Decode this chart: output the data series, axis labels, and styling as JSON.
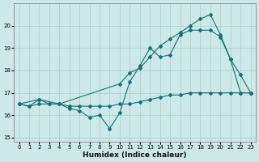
{
  "xlabel": "Humidex (Indice chaleur)",
  "xlim": [
    -0.5,
    23.5
  ],
  "ylim": [
    14.8,
    21.0
  ],
  "yticks": [
    15,
    16,
    17,
    18,
    19,
    20
  ],
  "xticks": [
    0,
    1,
    2,
    3,
    4,
    5,
    6,
    7,
    8,
    9,
    10,
    11,
    12,
    13,
    14,
    15,
    16,
    17,
    18,
    19,
    20,
    21,
    22,
    23
  ],
  "background_color": "#cce8e8",
  "grid_color": "#aacccc",
  "line_color": "#1a7070",
  "line1_x": [
    0,
    2,
    4,
    10,
    11,
    12,
    13,
    14,
    15,
    16,
    17,
    18,
    19,
    20,
    21,
    22,
    23
  ],
  "line1_y": [
    16.5,
    16.7,
    16.5,
    17.4,
    17.9,
    18.1,
    18.6,
    19.1,
    19.4,
    19.7,
    20.0,
    20.3,
    20.5,
    19.6,
    18.5,
    17.8,
    17.0
  ],
  "line2_x": [
    0,
    1,
    2,
    3,
    4,
    5,
    6,
    7,
    8,
    9,
    10,
    11,
    12,
    13,
    14,
    15,
    16,
    17,
    18,
    19,
    20,
    21,
    22,
    23
  ],
  "line2_y": [
    16.5,
    16.4,
    16.7,
    16.5,
    16.5,
    16.3,
    16.2,
    15.9,
    16.0,
    15.4,
    16.1,
    17.5,
    18.2,
    19.0,
    18.6,
    18.7,
    19.6,
    19.8,
    19.8,
    19.8,
    19.5,
    18.5,
    17.0,
    17.0
  ],
  "line3_x": [
    0,
    1,
    2,
    3,
    4,
    5,
    6,
    7,
    8,
    9,
    10,
    11,
    12,
    13,
    14,
    15,
    16,
    17,
    18,
    19,
    20,
    21,
    22,
    23
  ],
  "line3_y": [
    16.5,
    16.4,
    16.5,
    16.5,
    16.5,
    16.4,
    16.4,
    16.4,
    16.4,
    16.4,
    16.5,
    16.5,
    16.6,
    16.7,
    16.8,
    16.9,
    16.9,
    17.0,
    17.0,
    17.0,
    17.0,
    17.0,
    17.0,
    17.0
  ]
}
